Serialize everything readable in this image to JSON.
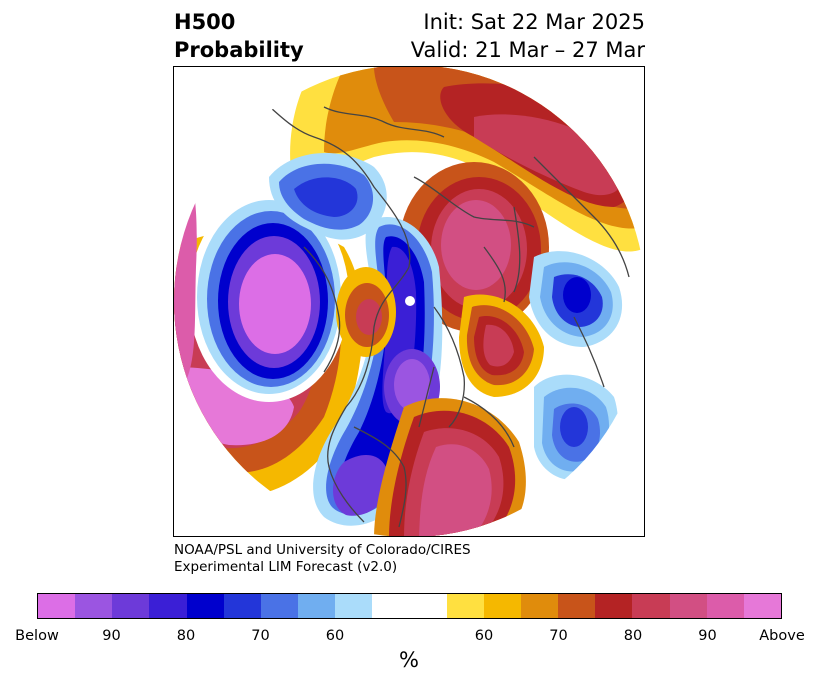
{
  "title": {
    "left_line1": "H500",
    "left_line2": "Probability",
    "right_line1": "Init: Sat 22 Mar 2025",
    "right_line2": "Valid: 21 Mar – 27 Mar"
  },
  "credit": {
    "line1": "NOAA/PSL and University of Colorado/CIRES",
    "line2": "Experimental LIM Forecast (v2.0)"
  },
  "colorbar": {
    "below_colors": [
      "#dc6ee6",
      "#9b55e1",
      "#6d3ad9",
      "#3b1fd6",
      "#0000cd",
      "#2336d9",
      "#4a72e6",
      "#70aef0",
      "#aadcfa"
    ],
    "neutral_color": "#ffffff",
    "above_colors": [
      "#ffe040",
      "#f5b800",
      "#e08c0c",
      "#c8541a",
      "#b42324",
      "#c83c55",
      "#d24f83",
      "#dc5caa",
      "#e678d8"
    ],
    "tick_labels": [
      "Below",
      "90",
      "80",
      "70",
      "60",
      "60",
      "70",
      "80",
      "90",
      "Above"
    ],
    "unit": "%"
  }
}
